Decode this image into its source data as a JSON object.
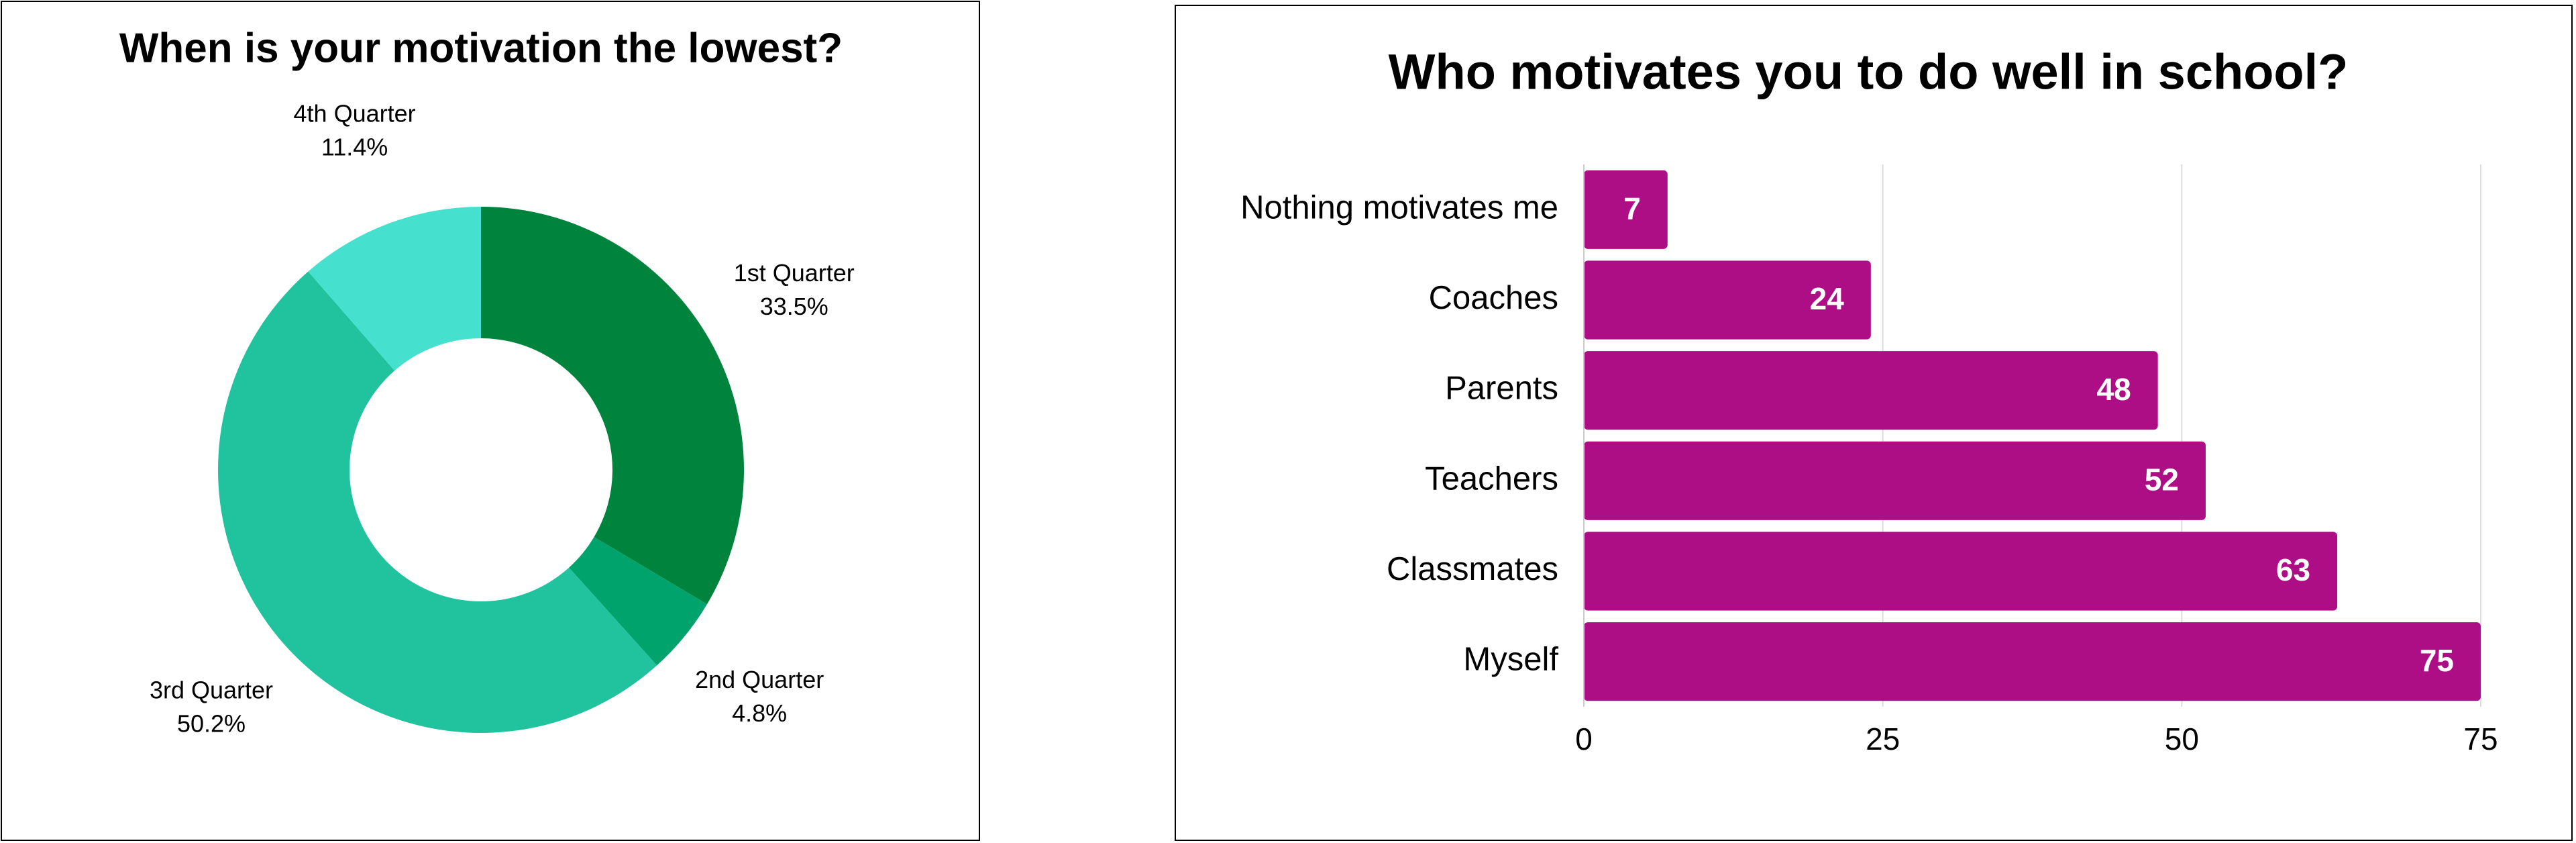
{
  "chart_data": [
    {
      "type": "pie",
      "title": "When is your motivation the lowest?",
      "categories": [
        "1st Quarter",
        "2nd Quarter",
        "3rd Quarter",
        "4th Quarter"
      ],
      "values": [
        33.5,
        4.8,
        50.2,
        11.4
      ],
      "value_labels": [
        "33.5%",
        "4.8%",
        "50.2%",
        "11.4%"
      ],
      "colors": [
        "#00843d",
        "#00a36c",
        "#20c39e",
        "#46e0cf"
      ]
    },
    {
      "type": "bar",
      "title": "Who motivates you to do well in school?",
      "categories": [
        "Nothing motivates me",
        "Coaches",
        "Parents",
        "Teachers",
        "Classmates",
        "Myself"
      ],
      "values": [
        7,
        24,
        48,
        52,
        63,
        75
      ],
      "color": "#ae0e85",
      "xlim": [
        0,
        75
      ],
      "xticks": [
        0,
        25,
        50,
        75
      ],
      "grid": true
    }
  ]
}
